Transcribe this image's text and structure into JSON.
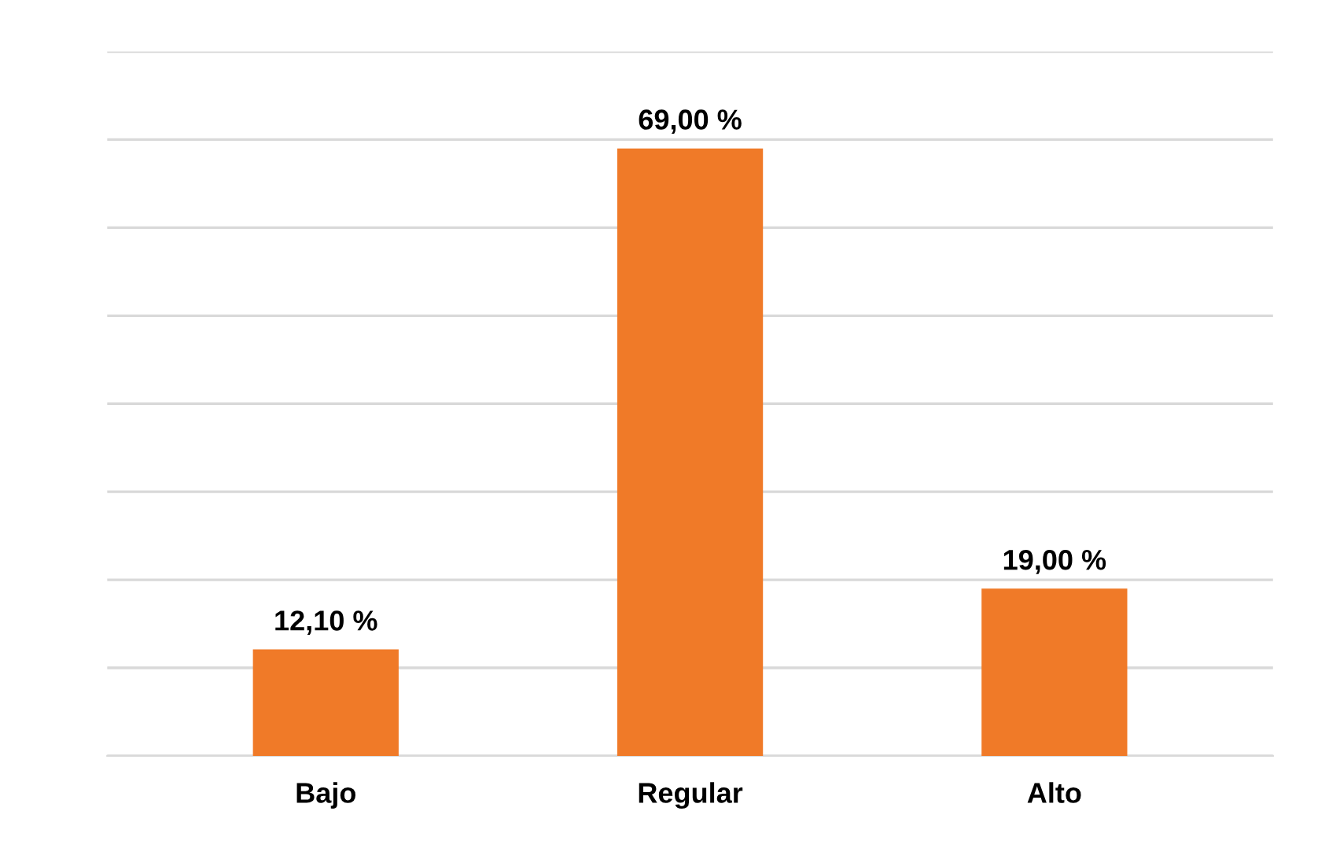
{
  "chart_data": {
    "type": "bar",
    "categories": [
      "Bajo",
      "Regular",
      "Alto"
    ],
    "values": [
      12.1,
      69.0,
      19.0
    ],
    "value_labels": [
      "12,10 %",
      "69,00 %",
      "19,00 %"
    ],
    "color": "#f07a28",
    "ylim": [
      0,
      80
    ],
    "yticks": [
      {
        "value": 0,
        "label": null
      },
      {
        "value": 10,
        "label": null
      },
      {
        "value": 20,
        "label": null
      },
      {
        "value": 30,
        "label": null
      },
      {
        "value": 40,
        "label": null
      },
      {
        "value": 50,
        "label": null
      },
      {
        "value": 60,
        "label": null
      },
      {
        "value": 70,
        "label": null
      },
      {
        "value": 80,
        "label": null
      }
    ],
    "tick_labels": "x",
    "grid": "y",
    "legend": false
  }
}
